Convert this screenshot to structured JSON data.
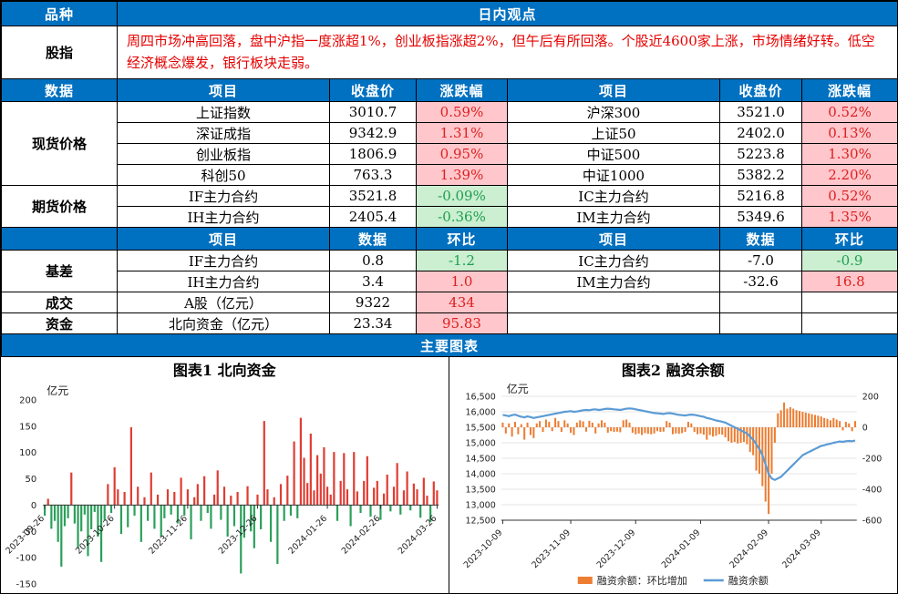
{
  "table": {
    "top": {
      "variety": "品种",
      "view": "日内观点"
    },
    "opinion": {
      "label": "股指",
      "text": "周四市场冲高回落，盘中沪指一度涨超1%，创业板指涨超2%，但午后有所回落。个股近4600家上涨，市场情绪好转。低空经济概念爆发，银行板块走弱。"
    },
    "price_header": {
      "c0": "数据",
      "c1": "项目",
      "c2": "收盘价",
      "c3": "涨跌幅",
      "c4": "项目",
      "c5": "收盘价",
      "c6": "涨跌幅"
    },
    "spot": {
      "label": "现货价格",
      "rows": [
        {
          "lname": "上证指数",
          "lclose": "3010.7",
          "lchg": "0.59%",
          "rname": "沪深300",
          "rclose": "3521.0",
          "rchg": "0.52%"
        },
        {
          "lname": "深证成指",
          "lclose": "9342.9",
          "lchg": "1.31%",
          "rname": "上证50",
          "rclose": "2402.0",
          "rchg": "0.13%"
        },
        {
          "lname": "创业板指",
          "lclose": "1806.9",
          "lchg": "0.95%",
          "rname": "中证500",
          "rclose": "5223.8",
          "rchg": "1.30%"
        },
        {
          "lname": "科创50",
          "lclose": "763.3",
          "lchg": "1.39%",
          "rname": "中证1000",
          "rclose": "5382.2",
          "rchg": "2.20%"
        }
      ]
    },
    "futures": {
      "label": "期货价格",
      "rows": [
        {
          "lname": "IF主力合约",
          "lclose": "3521.8",
          "lchg": "-0.09%",
          "rname": "IC主力合约",
          "rclose": "5216.8",
          "rchg": "0.52%"
        },
        {
          "lname": "IH主力合约",
          "lclose": "2405.4",
          "lchg": "-0.36%",
          "rname": "IM主力合约",
          "rclose": "5349.6",
          "rchg": "1.35%"
        }
      ]
    },
    "basis_header": {
      "c1": "项目",
      "c2": "数据",
      "c3": "环比",
      "c4": "项目",
      "c5": "数据",
      "c6": "环比"
    },
    "basis": {
      "label": "基差",
      "rows": [
        {
          "lname": "IF主力合约",
          "lval": "0.8",
          "lchg": "-1.2",
          "rname": "IC主力合约",
          "rval": "-7.0",
          "rchg": "-0.9"
        },
        {
          "lname": "IH主力合约",
          "lval": "3.4",
          "lchg": "1.0",
          "rname": "IM主力合约",
          "rval": "-32.6",
          "rchg": "16.8"
        }
      ]
    },
    "volume": {
      "label": "成交",
      "name": "A股（亿元）",
      "val": "9322",
      "chg": "434"
    },
    "flow": {
      "label": "资金",
      "name": "北向资金（亿元）",
      "val": "23.34",
      "chg": "95.83"
    },
    "charts_banner": "主要图表"
  },
  "colors": {
    "header_blue": "#0070C0",
    "up_bg": "#FFC7CB",
    "up_text": "#DC2020",
    "down_bg": "#CBEFD0",
    "down_text": "#1E9E50"
  },
  "chart_data": [
    {
      "type": "bar",
      "title": "图表1 北向资金",
      "ylabel": "亿元",
      "ylim": [
        -150,
        200
      ],
      "yticks": [
        200,
        150,
        100,
        50,
        0,
        -50,
        -100,
        -150
      ],
      "x_tick_labels": [
        "2023-09-26",
        "2023-10-26",
        "2023-11-26",
        "2023-12-26",
        "2024-01-26",
        "2024-02-26",
        "2024-03-26"
      ],
      "x_tick_index": [
        0,
        21,
        43,
        64,
        85,
        101,
        118
      ],
      "colors": {
        "positive": "#E03C32",
        "negative": "#2AA05A"
      },
      "values": [
        -20,
        12,
        -45,
        -30,
        -70,
        -117,
        -40,
        -25,
        62,
        -35,
        -82,
        -50,
        -18,
        -97,
        -46,
        -13,
        -60,
        -108,
        -28,
        40,
        -15,
        72,
        30,
        -55,
        25,
        -42,
        148,
        -20,
        35,
        -70,
        15,
        -30,
        62,
        -45,
        20,
        -60,
        -25,
        30,
        -18,
        25,
        -35,
        52,
        -20,
        30,
        -65,
        15,
        40,
        -30,
        55,
        -15,
        -45,
        20,
        66,
        -28,
        35,
        -60,
        18,
        -40,
        25,
        -130,
        -62,
        36,
        -50,
        -82,
        20,
        -46,
        160,
        30,
        -70,
        15,
        -112,
        40,
        -30,
        56,
        -20,
        121,
        -25,
        166,
        90,
        42,
        136,
        28,
        95,
        60,
        110,
        35,
        20,
        101,
        -30,
        46,
        99,
        30,
        -40,
        101,
        26,
        -15,
        46,
        93,
        -22,
        33,
        46,
        -28,
        22,
        58,
        -12,
        35,
        80,
        -18,
        28,
        64,
        -10,
        41,
        30,
        -24,
        52,
        18,
        -32,
        45,
        28
      ]
    },
    {
      "type": "line+bar",
      "title": "图表2 融资余额",
      "ylabel": "亿元",
      "left_ylim": [
        12500,
        16500
      ],
      "left_yticks": [
        "16,500",
        "16,000",
        "15,500",
        "15,000",
        "14,500",
        "14,000",
        "13,500",
        "13,000",
        "12,500"
      ],
      "right_ylim": [
        -600,
        200
      ],
      "right_yticks": [
        200,
        0,
        -200,
        -400,
        -600
      ],
      "x_tick_labels": [
        "2023-10-09",
        "2023-11-09",
        "2023-12-09",
        "2024-01-09",
        "2024-02-09",
        "2024-03-09"
      ],
      "x_tick_index": [
        0,
        22,
        43,
        64,
        86,
        103
      ],
      "legend": [
        {
          "label": "融资余额：环比增加",
          "color": "#ED7D31",
          "type": "bar"
        },
        {
          "label": "融资余额",
          "color": "#5B9BD5",
          "type": "line"
        }
      ],
      "line_values": [
        15900,
        15880,
        15860,
        15890,
        15910,
        15870,
        15840,
        15820,
        15850,
        15830,
        15800,
        15820,
        15840,
        15860,
        15880,
        15900,
        15920,
        15940,
        15960,
        15980,
        16000,
        16010,
        16020,
        16000,
        16010,
        16030,
        16050,
        16060,
        16050,
        16070,
        16080,
        16060,
        16070,
        16090,
        16100,
        16090,
        16080,
        16070,
        16060,
        16080,
        16100,
        16110,
        16100,
        16080,
        16060,
        16040,
        16020,
        16000,
        15980,
        15960,
        15950,
        15940,
        15930,
        15950,
        15960,
        15940,
        15920,
        15900,
        15890,
        15880,
        15900,
        15910,
        15900,
        15880,
        15860,
        15840,
        15800,
        15780,
        15750,
        15720,
        15700,
        15680,
        15650,
        15600,
        15550,
        15500,
        15450,
        15400,
        15350,
        15300,
        15200,
        15100,
        14950,
        14800,
        14600,
        14300,
        14000,
        13850,
        13800,
        13850,
        13900,
        14000,
        14100,
        14200,
        14300,
        14400,
        14500,
        14600,
        14650,
        14700,
        14750,
        14800,
        14850,
        14900,
        14920,
        14950,
        14970,
        15000,
        15020,
        15040,
        15030,
        15050,
        15060,
        15050,
        15070
      ],
      "bar_values": [
        30,
        -40,
        25,
        -60,
        35,
        -45,
        20,
        -80,
        30,
        -50,
        -70,
        25,
        40,
        -30,
        50,
        35,
        -25,
        60,
        40,
        -30,
        45,
        25,
        -35,
        -50,
        30,
        45,
        38,
        -28,
        42,
        30,
        -40,
        25,
        45,
        30,
        -35,
        -25,
        -30,
        -28,
        -32,
        45,
        50,
        30,
        -35,
        -45,
        -40,
        -50,
        -38,
        -42,
        -45,
        -40,
        -25,
        -30,
        -28,
        40,
        30,
        -45,
        -40,
        -42,
        -38,
        -30,
        35,
        25,
        -30,
        -45,
        -40,
        -48,
        -80,
        -50,
        -60,
        -55,
        -45,
        -48,
        -65,
        -90,
        -100,
        -95,
        -105,
        -100,
        -95,
        -110,
        -160,
        -180,
        -280,
        -300,
        -380,
        -480,
        -560,
        -300,
        -100,
        90,
        110,
        160,
        120,
        130,
        120,
        110,
        105,
        100,
        95,
        90,
        85,
        80,
        75,
        70,
        60,
        55,
        45,
        60,
        50,
        40,
        -20,
        35,
        25,
        -25,
        40
      ]
    }
  ]
}
